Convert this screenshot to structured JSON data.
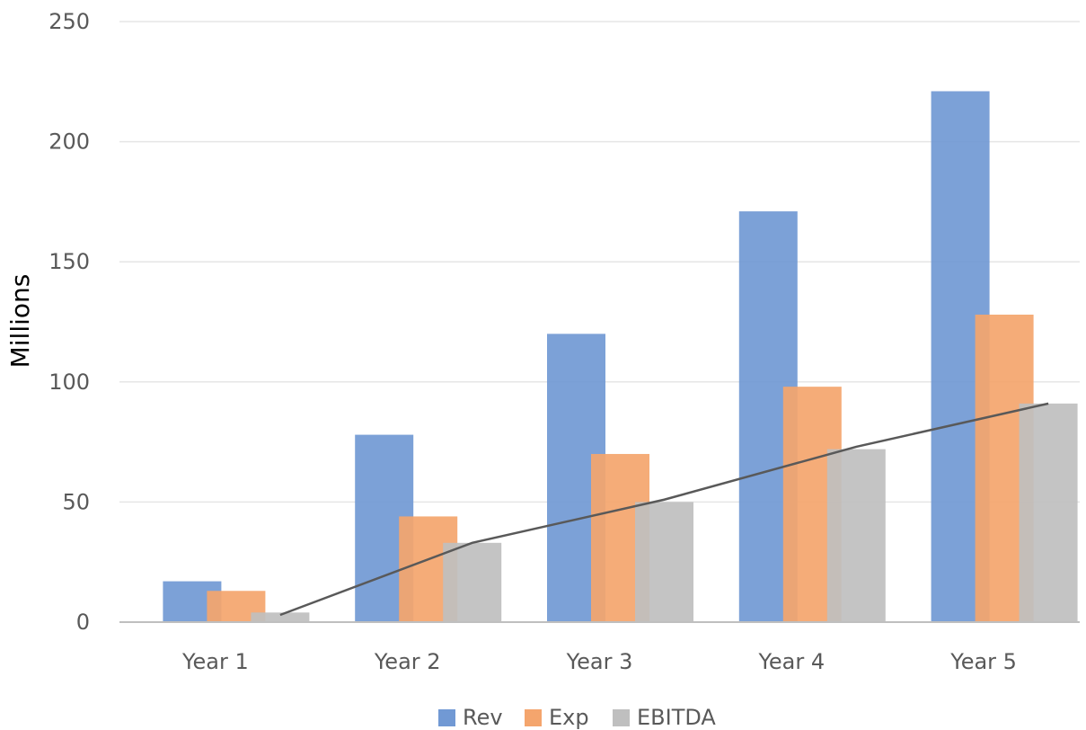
{
  "chart_data": {
    "type": "bar",
    "title": "",
    "xlabel": "",
    "ylabel": "Millions",
    "ylim": [
      0,
      250
    ],
    "yticks": [
      0,
      50,
      100,
      150,
      200,
      250
    ],
    "grid": true,
    "legend_position": "bottom",
    "categories": [
      "Year 1",
      "Year 2",
      "Year 3",
      "Year 4",
      "Year 5"
    ],
    "series": [
      {
        "name": "Rev",
        "color": "#7199d4",
        "values": [
          17,
          78,
          120,
          171,
          221
        ]
      },
      {
        "name": "Exp",
        "color": "#f4a56d",
        "values": [
          13,
          44,
          70,
          98,
          128
        ]
      },
      {
        "name": "EBITDA",
        "color": "#bfbfbf",
        "values": [
          4,
          33,
          50,
          72,
          91
        ]
      }
    ],
    "trendline": {
      "color": "#595959",
      "values": [
        3,
        33,
        51,
        73,
        91
      ]
    },
    "tick_color": "#595959",
    "grid_color": "#e6e6e6",
    "axis_color": "#bfbfbf"
  }
}
